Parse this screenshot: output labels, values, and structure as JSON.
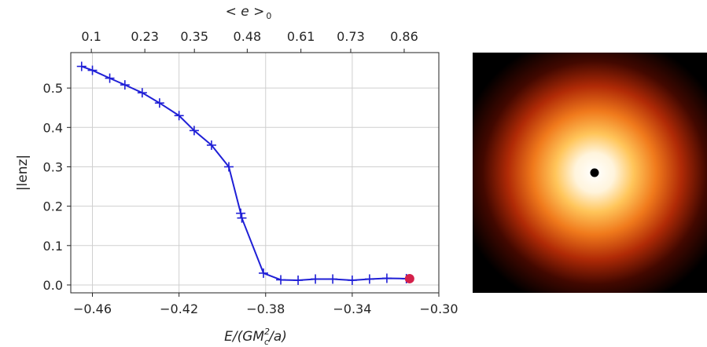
{
  "chart_data": [
    {
      "type": "line",
      "xlabel_main": "E/(GM",
      "xlabel_sup": "2",
      "xlabel_sub": "c",
      "xlabel_tail": "/a)",
      "ylabel": "|lenz|",
      "top_xlabel": "< e >",
      "top_xlabel_sub": "0",
      "xlim": [
        -0.47,
        -0.3
      ],
      "ylim": [
        -0.02,
        0.59
      ],
      "grid": true,
      "x_ticks": [
        -0.46,
        -0.42,
        -0.38,
        -0.34,
        -0.3
      ],
      "x_tick_labels": [
        "−0.46",
        "−0.42",
        "−0.38",
        "−0.34",
        "−0.30"
      ],
      "y_ticks": [
        0.0,
        0.1,
        0.2,
        0.3,
        0.4,
        0.5
      ],
      "y_tick_labels": [
        "0.0",
        "0.1",
        "0.2",
        "0.3",
        "0.4",
        "0.5"
      ],
      "top_ticks": [
        -0.4605,
        -0.4358,
        -0.4129,
        -0.3885,
        -0.3637,
        -0.3407,
        -0.316
      ],
      "top_tick_labels": [
        "0.1",
        "0.23",
        "0.35",
        "0.48",
        "0.61",
        "0.73",
        "0.86"
      ],
      "series": [
        {
          "color": "#1f1fd6",
          "marker": "+",
          "x": [
            -0.465,
            -0.46,
            -0.452,
            -0.445,
            -0.437,
            -0.429,
            -0.42,
            -0.413,
            -0.405,
            -0.397,
            -0.3915,
            -0.391,
            -0.381,
            -0.373,
            -0.365,
            -0.357,
            -0.349,
            -0.34,
            -0.332,
            -0.324,
            -0.315
          ],
          "y": [
            0.555,
            0.545,
            0.525,
            0.508,
            0.488,
            0.462,
            0.43,
            0.392,
            0.355,
            0.3,
            0.182,
            0.17,
            0.03,
            0.013,
            0.012,
            0.015,
            0.015,
            0.012,
            0.015,
            0.017,
            0.016
          ]
        }
      ],
      "highlight_point": {
        "x": -0.3135,
        "y": 0.016,
        "color": "#d4204a"
      }
    }
  ],
  "image_panel": {
    "type": "density-map",
    "colormap": "gist_heat",
    "center_dot_color": "#000000"
  }
}
